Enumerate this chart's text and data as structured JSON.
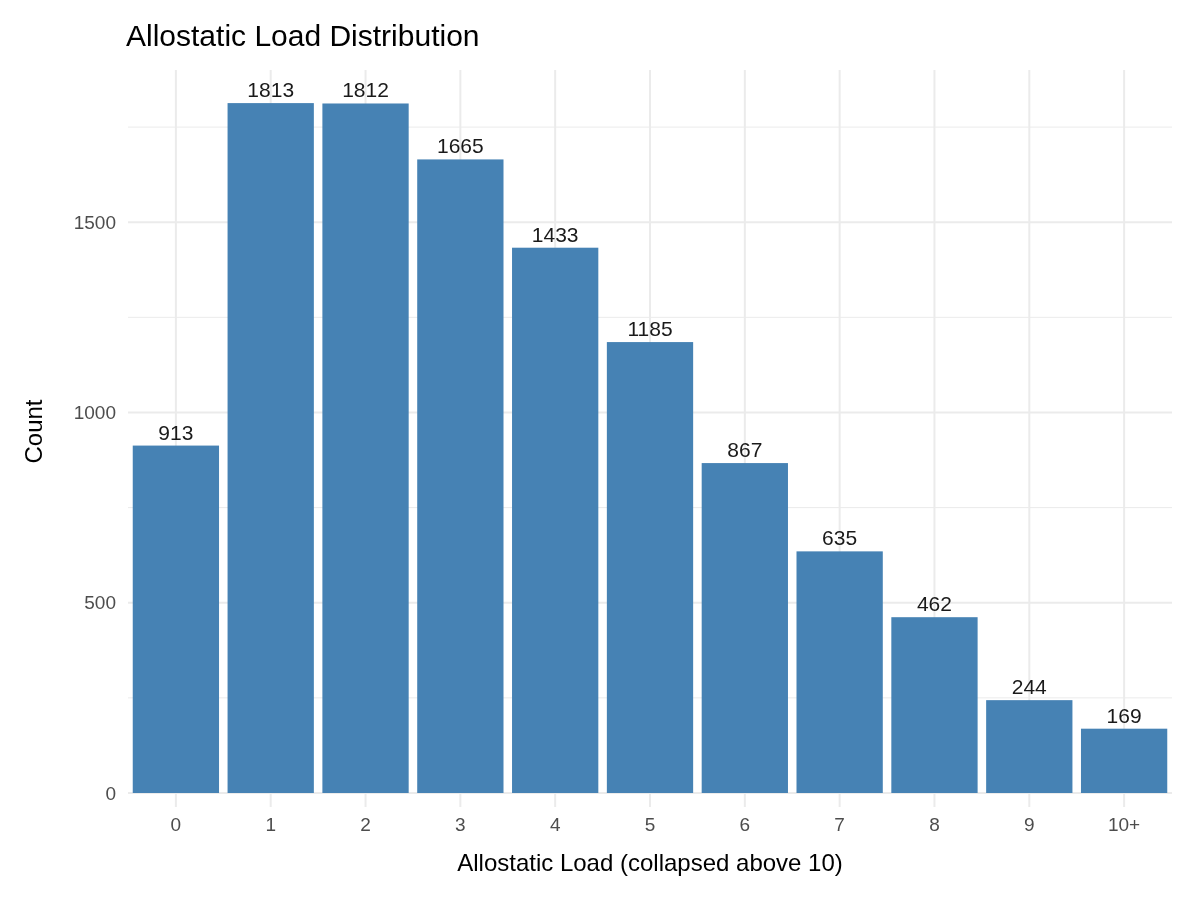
{
  "chart_data": {
    "type": "bar",
    "title": "Allostatic Load Distribution",
    "xlabel": "Allostatic Load (collapsed above 10)",
    "ylabel": "Count",
    "categories": [
      "0",
      "1",
      "2",
      "3",
      "4",
      "5",
      "6",
      "7",
      "8",
      "9",
      "10+"
    ],
    "values": [
      913,
      1813,
      1812,
      1665,
      1433,
      1185,
      867,
      635,
      462,
      244,
      169
    ],
    "color": "#4682b4",
    "data_labels": true,
    "ylim": [
      0,
      1900
    ],
    "yticks": [
      0,
      {
        "value": 250,
        "label": null
      },
      500,
      {
        "value": 750,
        "label": null
      },
      1000,
      {
        "value": 1250,
        "label": null
      },
      1500,
      {
        "value": 1750,
        "label": null
      }
    ],
    "grid": true
  }
}
